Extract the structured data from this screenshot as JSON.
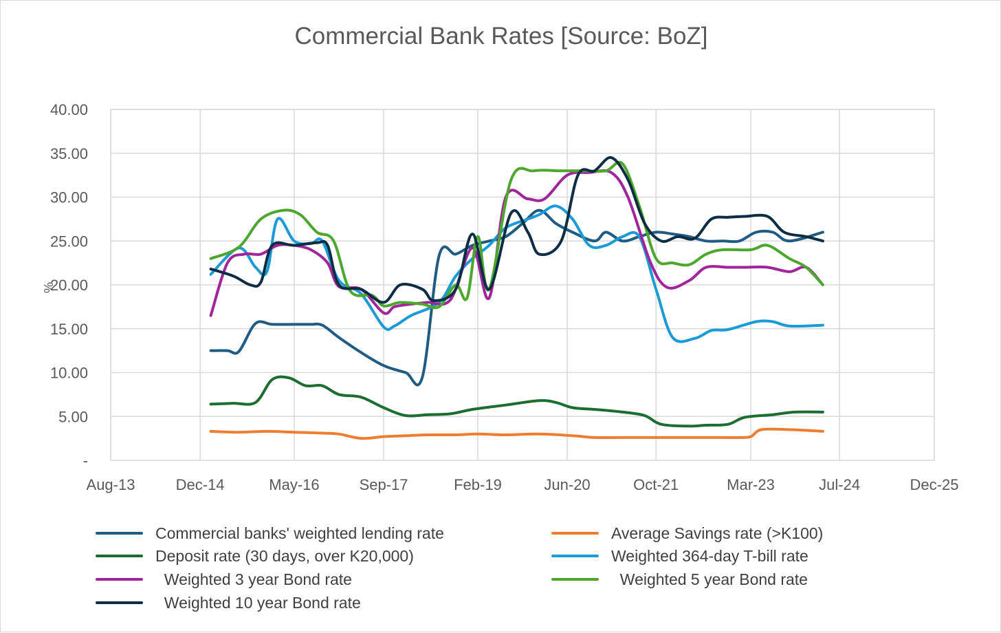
{
  "chart_data": {
    "type": "line",
    "title": "Commercial Bank Rates [Source: BoZ]",
    "ylabel": "%",
    "xlabel": "",
    "ylim": [
      0,
      40
    ],
    "y_ticks": [
      {
        "value": 0,
        "label": "-"
      },
      {
        "value": 5,
        "label": "5.00"
      },
      {
        "value": 10,
        "label": "10.00"
      },
      {
        "value": 15,
        "label": "15.00"
      },
      {
        "value": 20,
        "label": "20.00"
      },
      {
        "value": 25,
        "label": "25.00"
      },
      {
        "value": 30,
        "label": "30.00"
      },
      {
        "value": 35,
        "label": "35.00"
      },
      {
        "value": 40,
        "label": "40.00"
      }
    ],
    "xlim": [
      2013.58,
      2025.92
    ],
    "x_ticks": [
      {
        "value": 2013.58,
        "label": "Aug-13"
      },
      {
        "value": 2014.92,
        "label": "Dec-14"
      },
      {
        "value": 2016.33,
        "label": "May-16"
      },
      {
        "value": 2017.67,
        "label": "Sep-17"
      },
      {
        "value": 2019.08,
        "label": "Feb-19"
      },
      {
        "value": 2020.42,
        "label": "Jun-20"
      },
      {
        "value": 2021.75,
        "label": "Oct-21"
      },
      {
        "value": 2023.17,
        "label": "Mar-23"
      },
      {
        "value": 2024.5,
        "label": "Jul-24"
      },
      {
        "value": 2025.92,
        "label": "Dec-25"
      }
    ],
    "grid": true,
    "legend_position": "bottom",
    "series": [
      {
        "name": "Commercial banks' weighted lending rate",
        "color": "#1f5b84",
        "points": [
          [
            2015.08,
            12.5
          ],
          [
            2015.33,
            12.5
          ],
          [
            2015.5,
            12.4
          ],
          [
            2015.75,
            15.6
          ],
          [
            2016.0,
            15.5
          ],
          [
            2016.33,
            15.5
          ],
          [
            2016.58,
            15.5
          ],
          [
            2016.75,
            15.4
          ],
          [
            2017.0,
            14.0
          ],
          [
            2017.33,
            12.3
          ],
          [
            2017.67,
            10.8
          ],
          [
            2018.0,
            10.0
          ],
          [
            2018.25,
            9.5
          ],
          [
            2018.5,
            23.3
          ],
          [
            2018.75,
            23.5
          ],
          [
            2019.0,
            24.5
          ],
          [
            2019.25,
            25.0
          ],
          [
            2019.5,
            25.5
          ],
          [
            2019.75,
            27.0
          ],
          [
            2020.0,
            28.5
          ],
          [
            2020.25,
            27.0
          ],
          [
            2020.5,
            26.0
          ],
          [
            2020.83,
            25.0
          ],
          [
            2021.0,
            26.0
          ],
          [
            2021.25,
            25.0
          ],
          [
            2021.5,
            25.5
          ],
          [
            2021.75,
            26.0
          ],
          [
            2022.0,
            25.8
          ],
          [
            2022.25,
            25.5
          ],
          [
            2022.5,
            25.0
          ],
          [
            2022.75,
            25.0
          ],
          [
            2023.0,
            25.0
          ],
          [
            2023.25,
            26.0
          ],
          [
            2023.5,
            26.0
          ],
          [
            2023.75,
            25.0
          ],
          [
            2024.25,
            26.0
          ]
        ]
      },
      {
        "name": "Average Savings rate (>K100)",
        "color": "#ed7d31",
        "points": [
          [
            2015.08,
            3.3
          ],
          [
            2015.5,
            3.2
          ],
          [
            2015.92,
            3.3
          ],
          [
            2016.33,
            3.2
          ],
          [
            2016.75,
            3.1
          ],
          [
            2017.0,
            3.0
          ],
          [
            2017.33,
            2.5
          ],
          [
            2017.67,
            2.7
          ],
          [
            2018.0,
            2.8
          ],
          [
            2018.33,
            2.9
          ],
          [
            2018.75,
            2.9
          ],
          [
            2019.08,
            3.0
          ],
          [
            2019.5,
            2.9
          ],
          [
            2020.0,
            3.0
          ],
          [
            2020.5,
            2.8
          ],
          [
            2020.83,
            2.6
          ],
          [
            2021.25,
            2.6
          ],
          [
            2021.75,
            2.6
          ],
          [
            2022.25,
            2.6
          ],
          [
            2022.75,
            2.6
          ],
          [
            2023.0,
            2.6
          ],
          [
            2023.17,
            2.7
          ],
          [
            2023.33,
            3.5
          ],
          [
            2023.75,
            3.5
          ],
          [
            2024.25,
            3.3
          ]
        ]
      },
      {
        "name": "Deposit rate (30 days, over K20,000)",
        "color": "#1b6e2f",
        "points": [
          [
            2015.08,
            6.4
          ],
          [
            2015.42,
            6.5
          ],
          [
            2015.75,
            6.6
          ],
          [
            2016.0,
            9.2
          ],
          [
            2016.25,
            9.4
          ],
          [
            2016.5,
            8.5
          ],
          [
            2016.75,
            8.5
          ],
          [
            2017.0,
            7.5
          ],
          [
            2017.33,
            7.2
          ],
          [
            2017.67,
            6.0
          ],
          [
            2018.0,
            5.1
          ],
          [
            2018.33,
            5.2
          ],
          [
            2018.67,
            5.3
          ],
          [
            2019.0,
            5.8
          ],
          [
            2019.5,
            6.3
          ],
          [
            2020.0,
            6.8
          ],
          [
            2020.25,
            6.6
          ],
          [
            2020.5,
            6.0
          ],
          [
            2020.83,
            5.8
          ],
          [
            2021.25,
            5.5
          ],
          [
            2021.58,
            5.1
          ],
          [
            2021.83,
            4.1
          ],
          [
            2022.25,
            3.9
          ],
          [
            2022.5,
            4.0
          ],
          [
            2022.83,
            4.1
          ],
          [
            2023.08,
            4.9
          ],
          [
            2023.5,
            5.2
          ],
          [
            2023.83,
            5.5
          ],
          [
            2024.25,
            5.5
          ]
        ]
      },
      {
        "name": "Weighted 364-day T-bill rate",
        "color": "#1a9bd7",
        "points": [
          [
            2015.08,
            21.2
          ],
          [
            2015.5,
            24.2
          ],
          [
            2015.75,
            22.0
          ],
          [
            2015.92,
            21.5
          ],
          [
            2016.08,
            27.5
          ],
          [
            2016.33,
            25.0
          ],
          [
            2016.58,
            24.7
          ],
          [
            2016.75,
            25.0
          ],
          [
            2017.0,
            20.5
          ],
          [
            2017.33,
            19.0
          ],
          [
            2017.67,
            15.2
          ],
          [
            2017.83,
            15.3
          ],
          [
            2018.08,
            16.5
          ],
          [
            2018.5,
            18.0
          ],
          [
            2018.75,
            21.0
          ],
          [
            2019.0,
            23.0
          ],
          [
            2019.25,
            24.5
          ],
          [
            2019.5,
            26.5
          ],
          [
            2019.83,
            27.5
          ],
          [
            2020.0,
            28.0
          ],
          [
            2020.25,
            29.0
          ],
          [
            2020.5,
            27.5
          ],
          [
            2020.75,
            24.5
          ],
          [
            2021.0,
            24.5
          ],
          [
            2021.25,
            25.5
          ],
          [
            2021.5,
            25.5
          ],
          [
            2021.75,
            19.5
          ],
          [
            2022.0,
            14.0
          ],
          [
            2022.33,
            13.9
          ],
          [
            2022.58,
            14.8
          ],
          [
            2022.83,
            14.9
          ],
          [
            2023.25,
            15.8
          ],
          [
            2023.5,
            15.8
          ],
          [
            2023.75,
            15.3
          ],
          [
            2024.25,
            15.4
          ]
        ]
      },
      {
        "name": "Weighted 3 year Bond rate",
        "color": "#a0259a",
        "points": [
          [
            2015.08,
            16.5
          ],
          [
            2015.33,
            22.5
          ],
          [
            2015.58,
            23.5
          ],
          [
            2015.83,
            23.5
          ],
          [
            2016.08,
            24.5
          ],
          [
            2016.33,
            24.5
          ],
          [
            2016.58,
            24.0
          ],
          [
            2016.83,
            22.5
          ],
          [
            2017.0,
            19.8
          ],
          [
            2017.33,
            19.5
          ],
          [
            2017.67,
            16.8
          ],
          [
            2017.83,
            17.5
          ],
          [
            2018.08,
            17.8
          ],
          [
            2018.33,
            18.0
          ],
          [
            2018.67,
            18.3
          ],
          [
            2019.0,
            24.2
          ],
          [
            2019.25,
            18.5
          ],
          [
            2019.5,
            30.0
          ],
          [
            2019.83,
            29.8
          ],
          [
            2020.08,
            29.8
          ],
          [
            2020.42,
            32.5
          ],
          [
            2020.75,
            32.8
          ],
          [
            2021.08,
            32.8
          ],
          [
            2021.33,
            30.0
          ],
          [
            2021.67,
            22.5
          ],
          [
            2021.92,
            19.7
          ],
          [
            2022.25,
            20.5
          ],
          [
            2022.5,
            22.0
          ],
          [
            2022.83,
            22.0
          ],
          [
            2023.08,
            22.0
          ],
          [
            2023.42,
            22.0
          ],
          [
            2023.75,
            21.5
          ],
          [
            2024.0,
            22.0
          ],
          [
            2024.25,
            20.0
          ]
        ]
      },
      {
        "name": "Weighted 5 year Bond rate",
        "color": "#4ca82c",
        "points": [
          [
            2015.08,
            23.0
          ],
          [
            2015.5,
            24.3
          ],
          [
            2015.83,
            27.5
          ],
          [
            2016.17,
            28.5
          ],
          [
            2016.42,
            28.0
          ],
          [
            2016.67,
            26.0
          ],
          [
            2016.92,
            25.0
          ],
          [
            2017.17,
            19.3
          ],
          [
            2017.5,
            18.8
          ],
          [
            2017.67,
            17.6
          ],
          [
            2017.92,
            18.0
          ],
          [
            2018.25,
            17.8
          ],
          [
            2018.5,
            17.5
          ],
          [
            2018.75,
            20.0
          ],
          [
            2018.92,
            18.5
          ],
          [
            2019.08,
            25.5
          ],
          [
            2019.25,
            19.5
          ],
          [
            2019.58,
            32.0
          ],
          [
            2019.92,
            33.0
          ],
          [
            2020.33,
            33.0
          ],
          [
            2020.67,
            33.0
          ],
          [
            2021.0,
            33.0
          ],
          [
            2021.25,
            33.8
          ],
          [
            2021.5,
            29.0
          ],
          [
            2021.75,
            23.0
          ],
          [
            2022.0,
            22.5
          ],
          [
            2022.25,
            22.3
          ],
          [
            2022.5,
            23.5
          ],
          [
            2022.75,
            24.0
          ],
          [
            2023.17,
            24.0
          ],
          [
            2023.42,
            24.5
          ],
          [
            2023.75,
            23.0
          ],
          [
            2024.0,
            22.0
          ],
          [
            2024.25,
            20.0
          ]
        ]
      },
      {
        "name": "Weighted 10 year Bond rate",
        "color": "#0d2d45",
        "points": [
          [
            2015.08,
            21.8
          ],
          [
            2015.42,
            21.0
          ],
          [
            2015.67,
            20.0
          ],
          [
            2015.83,
            20.3
          ],
          [
            2016.0,
            24.5
          ],
          [
            2016.33,
            24.5
          ],
          [
            2016.67,
            24.8
          ],
          [
            2016.83,
            24.5
          ],
          [
            2017.0,
            20.0
          ],
          [
            2017.33,
            19.5
          ],
          [
            2017.67,
            18.0
          ],
          [
            2017.92,
            20.0
          ],
          [
            2018.25,
            19.5
          ],
          [
            2018.42,
            18.2
          ],
          [
            2018.75,
            19.5
          ],
          [
            2019.0,
            25.8
          ],
          [
            2019.25,
            19.5
          ],
          [
            2019.58,
            28.2
          ],
          [
            2019.83,
            26.0
          ],
          [
            2020.0,
            23.5
          ],
          [
            2020.33,
            25.0
          ],
          [
            2020.58,
            32.5
          ],
          [
            2020.83,
            33.0
          ],
          [
            2021.08,
            34.5
          ],
          [
            2021.33,
            32.0
          ],
          [
            2021.58,
            27.0
          ],
          [
            2021.83,
            25.0
          ],
          [
            2022.08,
            25.5
          ],
          [
            2022.33,
            25.3
          ],
          [
            2022.58,
            27.5
          ],
          [
            2022.83,
            27.7
          ],
          [
            2023.08,
            27.8
          ],
          [
            2023.42,
            27.8
          ],
          [
            2023.67,
            26.0
          ],
          [
            2024.0,
            25.5
          ],
          [
            2024.25,
            25.0
          ]
        ]
      }
    ]
  }
}
